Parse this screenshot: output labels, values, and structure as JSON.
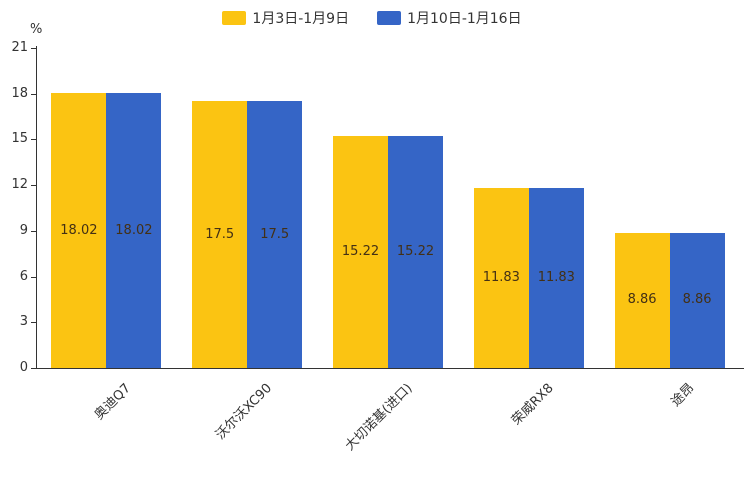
{
  "chart_data": {
    "type": "bar",
    "title": "",
    "categories": [
      "奥迪Q7",
      "沃尔沃XC90",
      "大切诺基(进口)",
      "荣威RX8",
      "途昂"
    ],
    "series": [
      {
        "name": "1月3日-1月9日",
        "color": "#FBC412",
        "values": [
          18.02,
          17.5,
          15.22,
          11.83,
          8.86
        ]
      },
      {
        "name": "1月10日-1月16日",
        "color": "#3565C6",
        "values": [
          18.02,
          17.5,
          15.22,
          11.83,
          8.86
        ]
      }
    ],
    "xlabel": "",
    "ylabel": "%",
    "ylim": [
      0,
      21
    ],
    "yticks": [
      0,
      3,
      6,
      9,
      12,
      15,
      18,
      21
    ],
    "grid": false,
    "legend_position": "top",
    "value_labels_shown": true
  },
  "legend": {
    "series1_label": "1月3日-1月9日",
    "series2_label": "1月10日-1月16日"
  },
  "axis": {
    "unit": "%"
  },
  "colors": {
    "series1": "#FBC412",
    "series2": "#3565C6",
    "axis": "#333333",
    "value_text": "#433015"
  }
}
